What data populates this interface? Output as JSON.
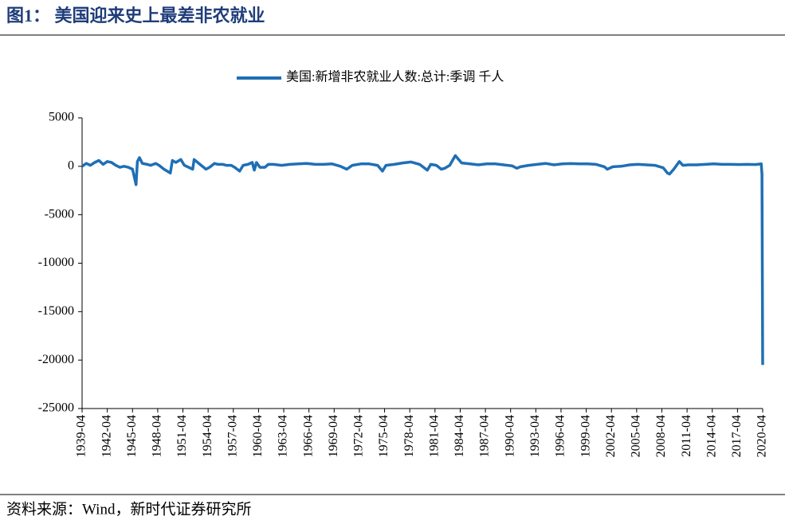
{
  "chart_data": {
    "type": "line",
    "title": "图1：  美国迎来史上最差非农就业",
    "source": "资料来源：Wind，新时代证券研究所",
    "xlim": [
      "1939-04",
      "2020-04"
    ],
    "xticks": [
      "1939-04",
      "1942-04",
      "1945-04",
      "1948-04",
      "1951-04",
      "1954-04",
      "1957-04",
      "1960-04",
      "1963-04",
      "1966-04",
      "1969-04",
      "1972-04",
      "1975-04",
      "1978-04",
      "1981-04",
      "1984-04",
      "1987-04",
      "1990-04",
      "1993-04",
      "1996-04",
      "1999-04",
      "2002-04",
      "2005-04",
      "2008-04",
      "2011-04",
      "2014-04",
      "2017-04",
      "2020-04"
    ],
    "ylim": [
      -25000,
      5000
    ],
    "yticks": [
      5000,
      0,
      -5000,
      -10000,
      -15000,
      -20000,
      -25000
    ],
    "grid": false,
    "legend": "top",
    "x": [
      "1939-04",
      "1939-10",
      "1940-04",
      "1940-10",
      "1941-04",
      "1941-10",
      "1942-04",
      "1942-10",
      "1943-04",
      "1943-10",
      "1944-04",
      "1944-10",
      "1945-04",
      "1945-09",
      "1945-11",
      "1946-02",
      "1946-06",
      "1947-01",
      "1947-06",
      "1948-01",
      "1948-06",
      "1949-01",
      "1949-10",
      "1950-01",
      "1950-06",
      "1951-01",
      "1951-06",
      "1952-06",
      "1952-08",
      "1953-06",
      "1954-01",
      "1954-06",
      "1955-01",
      "1955-06",
      "1956-01",
      "1956-06",
      "1957-01",
      "1957-06",
      "1958-01",
      "1958-06",
      "1959-01",
      "1959-07",
      "1959-10",
      "1960-01",
      "1960-06",
      "1961-01",
      "1961-06",
      "1962-01",
      "1963-01",
      "1964-01",
      "1965-01",
      "1966-01",
      "1967-01",
      "1968-01",
      "1969-01",
      "1970-01",
      "1970-10",
      "1971-06",
      "1972-06",
      "1973-06",
      "1974-06",
      "1975-01",
      "1975-06",
      "1976-06",
      "1977-06",
      "1978-06",
      "1979-06",
      "1980-05",
      "1980-10",
      "1981-06",
      "1982-01",
      "1982-06",
      "1983-01",
      "1983-09",
      "1984-06",
      "1985-06",
      "1986-06",
      "1987-06",
      "1988-06",
      "1989-06",
      "1990-06",
      "1991-01",
      "1991-06",
      "1992-06",
      "1993-06",
      "1994-06",
      "1995-06",
      "1996-06",
      "1997-06",
      "1998-06",
      "1999-06",
      "2000-06",
      "2001-06",
      "2001-10",
      "2002-06",
      "2003-06",
      "2004-06",
      "2005-06",
      "2006-06",
      "2007-06",
      "2008-06",
      "2008-12",
      "2009-03",
      "2009-09",
      "2010-05",
      "2010-10",
      "2011-06",
      "2012-06",
      "2013-06",
      "2014-06",
      "2015-06",
      "2016-06",
      "2017-06",
      "2018-06",
      "2019-06",
      "2020-02",
      "2020-03",
      "2020-04"
    ],
    "series": [
      {
        "name": "美国:新增非农就业人数:总计:季调 千人",
        "color": "#1f6fb5",
        "values": [
          0,
          300,
          100,
          400,
          600,
          200,
          500,
          400,
          100,
          -100,
          0,
          -100,
          -300,
          -1900,
          500,
          900,
          300,
          200,
          100,
          300,
          100,
          -300,
          -700,
          600,
          400,
          700,
          100,
          -300,
          700,
          100,
          -300,
          -100,
          300,
          200,
          200,
          100,
          100,
          -100,
          -500,
          100,
          200,
          400,
          -400,
          400,
          -100,
          -100,
          200,
          200,
          100,
          200,
          250,
          300,
          200,
          200,
          250,
          0,
          -300,
          100,
          250,
          250,
          100,
          -500,
          100,
          200,
          350,
          450,
          200,
          -400,
          200,
          100,
          -300,
          -200,
          100,
          1100,
          350,
          250,
          150,
          250,
          250,
          150,
          50,
          -200,
          -50,
          100,
          200,
          300,
          150,
          250,
          280,
          250,
          250,
          200,
          -50,
          -300,
          -50,
          0,
          150,
          200,
          150,
          100,
          -150,
          -700,
          -800,
          -300,
          500,
          100,
          150,
          150,
          200,
          250,
          200,
          200,
          180,
          200,
          180,
          250,
          -800,
          -20500
        ]
      }
    ]
  }
}
